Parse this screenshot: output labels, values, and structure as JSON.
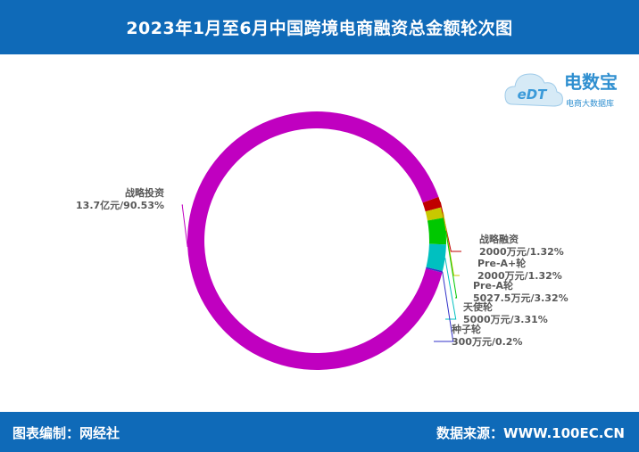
{
  "header": {
    "title": "2023年1月至6月中国跨境电商融资总金额轮次图"
  },
  "logo": {
    "brand": "电数宝",
    "subtitle": "电商大数据库",
    "mark": "eDT"
  },
  "footer": {
    "left": "图表编制：网经社",
    "right": "数据来源：WWW.100EC.CN"
  },
  "colors": {
    "header_bg": "#0f6ab8",
    "战略投资": "#c000c0",
    "战略融资": "#c00000",
    "Pre-A+轮": "#c8c800",
    "Pre-A轮": "#00c800",
    "天使轮": "#00c0c0",
    "种子轮": "#3030c8"
  },
  "chart_data": {
    "type": "pie",
    "variant": "donut",
    "slices": [
      {
        "name": "战略投资",
        "value": 90.53,
        "amount": "13.7亿元",
        "label_line1": "战略投资",
        "label_line2": "13.7亿元/90.53%"
      },
      {
        "name": "战略融资",
        "value": 1.32,
        "amount": "2000万元",
        "label_line1": "战略融资",
        "label_line2": "2000万元/1.32%"
      },
      {
        "name": "Pre-A+轮",
        "value": 1.32,
        "amount": "2000万元",
        "label_line1": "Pre-A+轮",
        "label_line2": "2000万元/1.32%"
      },
      {
        "name": "Pre-A轮",
        "value": 3.32,
        "amount": "5027.5万元",
        "label_line1": "Pre-A轮",
        "label_line2": "5027.5万元/3.32%"
      },
      {
        "name": "天使轮",
        "value": 3.31,
        "amount": "5000万元",
        "label_line1": "天使轮",
        "label_line2": "5000万元/3.31%"
      },
      {
        "name": "种子轮",
        "value": 0.2,
        "amount": "300万元",
        "label_line1": "种子轮",
        "label_line2": "300万元/0.2%"
      }
    ]
  }
}
